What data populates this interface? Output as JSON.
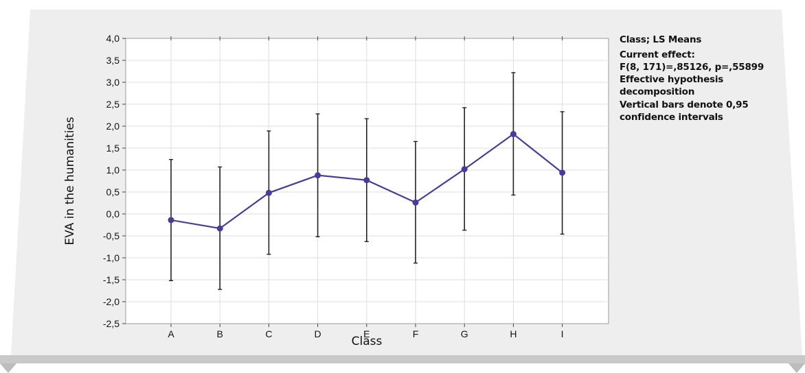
{
  "chart_data": {
    "type": "line",
    "title": "",
    "xlabel": "Class",
    "ylabel": "EVA in the humanities",
    "categories": [
      "A",
      "B",
      "C",
      "D",
      "E",
      "F",
      "G",
      "H",
      "I"
    ],
    "ylim": [
      -2.5,
      4.0
    ],
    "yticks": [
      "4,0",
      "3,5",
      "3,0",
      "2,5",
      "2,0",
      "1,5",
      "1,0",
      "0,5",
      "0,0",
      "-0,5",
      "-1,0",
      "-1,5",
      "-2,0",
      "-2,5"
    ],
    "grid": true,
    "series": [
      {
        "values": [
          -0.14,
          -0.33,
          0.48,
          0.88,
          0.77,
          0.26,
          1.02,
          1.82,
          0.94
        ],
        "ci_lower": [
          -1.52,
          -1.72,
          -0.92,
          -0.52,
          -0.63,
          -1.12,
          -0.37,
          0.43,
          -0.46
        ],
        "ci_upper": [
          1.24,
          1.07,
          1.89,
          2.28,
          2.17,
          1.65,
          2.42,
          3.22,
          2.33
        ]
      }
    ],
    "colors": {
      "line": "#4b3a9c",
      "errorbar": "#222222",
      "grid": "#dedede",
      "panel": "#eeeeee"
    },
    "annotations": [
      "Class; LS Means",
      "Current effect:",
      "F(8, 171)=,85126, p=,55899",
      "Effective hypothesis",
      "decomposition",
      "Vertical bars denote 0,95",
      "confidence intervals"
    ]
  }
}
